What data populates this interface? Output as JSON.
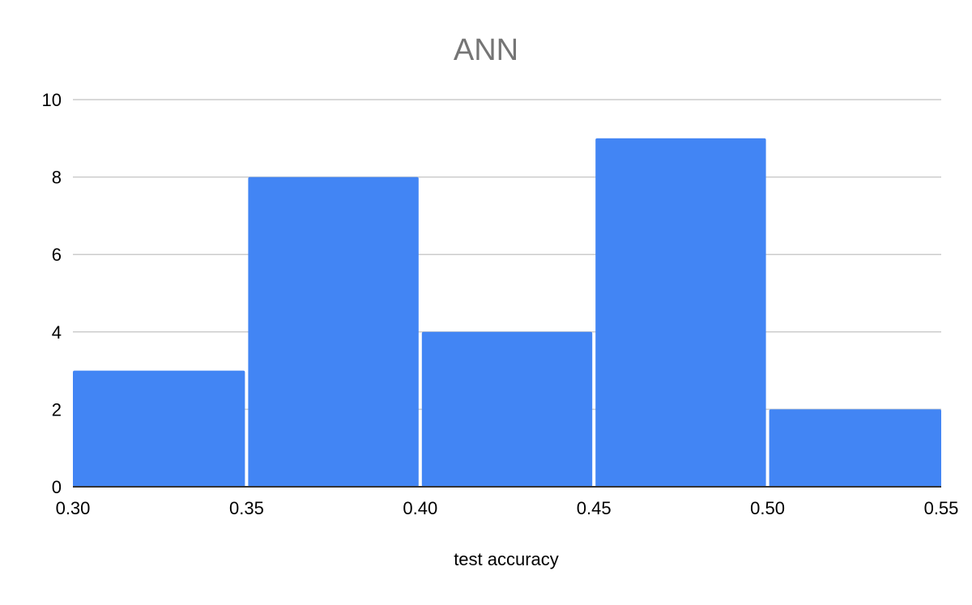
{
  "chart_data": {
    "type": "histogram",
    "title": "ANN",
    "xlabel": "test accuracy",
    "ylabel": "",
    "bins": [
      {
        "start": 0.3,
        "end": 0.35,
        "count": 3
      },
      {
        "start": 0.35,
        "end": 0.4,
        "count": 8
      },
      {
        "start": 0.4,
        "end": 0.45,
        "count": 4
      },
      {
        "start": 0.45,
        "end": 0.5,
        "count": 9
      },
      {
        "start": 0.5,
        "end": 0.55,
        "count": 2
      }
    ],
    "xlim": [
      0.3,
      0.55
    ],
    "ylim": [
      0,
      10
    ],
    "x_ticks": [
      "0.30",
      "0.35",
      "0.40",
      "0.45",
      "0.50",
      "0.55"
    ],
    "y_ticks": [
      "0",
      "2",
      "4",
      "6",
      "8",
      "10"
    ],
    "grid": "horizontal",
    "legend": "none",
    "colors": {
      "bar": "#4285f4",
      "title": "#757575",
      "grid": "#cccccc",
      "axis": "#333333",
      "text": "#000000"
    }
  }
}
